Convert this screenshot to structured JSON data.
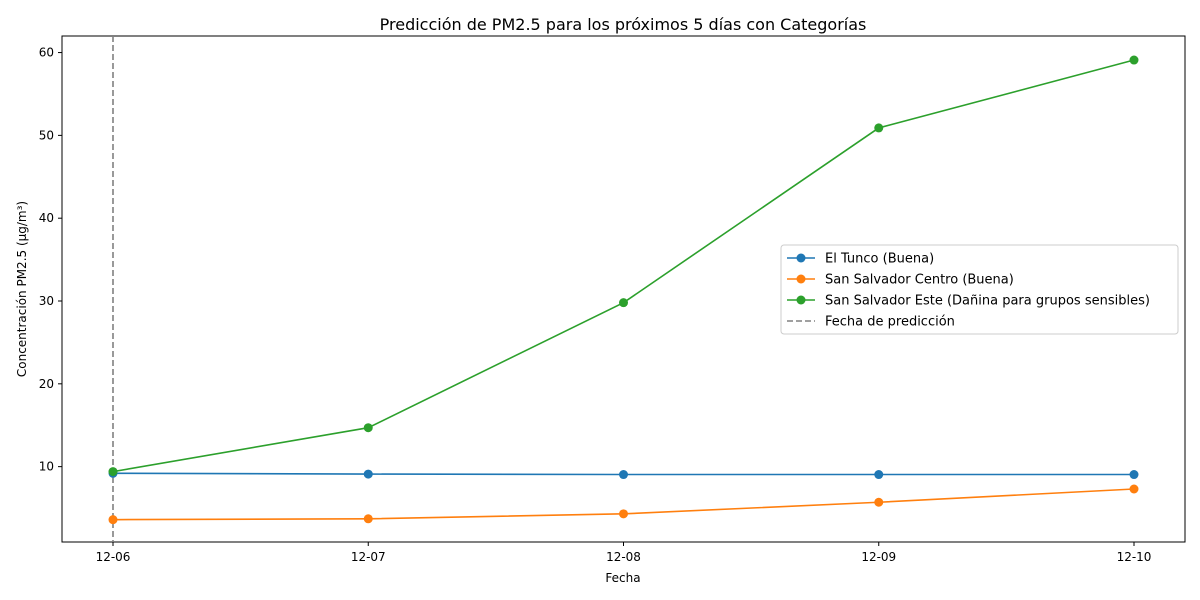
{
  "chart_data": {
    "type": "line",
    "title": "Predicción de PM2.5 para los próximos 5 días con Categorías",
    "xlabel": "Fecha",
    "ylabel": "Concentración PM2.5 (µg/m³)",
    "categories": [
      "12-06",
      "12-07",
      "12-08",
      "12-09",
      "12-10"
    ],
    "ylim": [
      0.9,
      62
    ],
    "yticks": [
      10,
      20,
      30,
      40,
      50,
      60
    ],
    "grid": false,
    "legend_position": "center-right",
    "series": [
      {
        "name": "El Tunco (Buena)",
        "color": "#1f77b4",
        "marker": "circle",
        "values": [
          9.2,
          9.1,
          9.05,
          9.05,
          9.05
        ]
      },
      {
        "name": "San Salvador Centro (Buena)",
        "color": "#ff7f0e",
        "marker": "circle",
        "values": [
          3.6,
          3.7,
          4.3,
          5.7,
          7.3
        ]
      },
      {
        "name": "San Salvador Este (Dañina para grupos sensibles)",
        "color": "#2ca02c",
        "marker": "circle",
        "values": [
          9.4,
          14.7,
          29.8,
          50.9,
          59.1
        ]
      }
    ],
    "reference_line": {
      "name": "Fecha de predicción",
      "x": "12-06",
      "color": "#808080",
      "style": "dashed"
    }
  }
}
